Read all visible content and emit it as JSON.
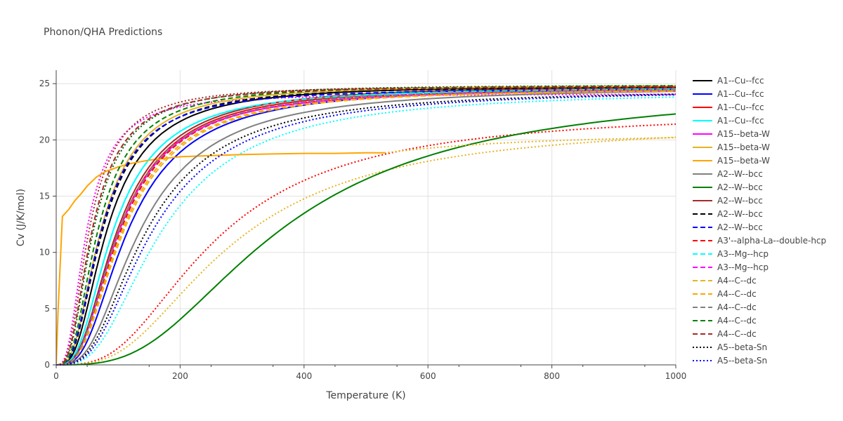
{
  "chart_data": {
    "type": "line",
    "title": "Phonon/QHA Predictions",
    "xlabel": "Temperature (K)",
    "ylabel": "Cv (J/K/mol)",
    "xlim": [
      0,
      1000
    ],
    "ylim": [
      0,
      26.2
    ],
    "x_ticks": [
      0,
      200,
      400,
      600,
      800,
      1000
    ],
    "y_ticks": [
      0,
      5,
      10,
      15,
      20,
      25
    ],
    "grid": true,
    "legend_position": "right",
    "series": [
      {
        "name": "A1--Cu--fcc",
        "color": "#000000",
        "dash": "solid",
        "theta": 340,
        "cinf": 24.9,
        "xmax": 1000
      },
      {
        "name": "A1--Cu--fcc",
        "color": "#0000ff",
        "dash": "solid",
        "theta": 480,
        "cinf": 24.8,
        "xmax": 1000
      },
      {
        "name": "A1--Cu--fcc",
        "color": "#ff0000",
        "dash": "solid",
        "theta": 420,
        "cinf": 24.8,
        "xmax": 1000
      },
      {
        "name": "A1--Cu--fcc",
        "color": "#00ffff",
        "dash": "solid",
        "theta": 380,
        "cinf": 24.7,
        "xmax": 1000
      },
      {
        "name": "A15--beta-W",
        "color": "#ff00ff",
        "dash": "solid",
        "theta": 420,
        "cinf": 24.6,
        "xmax": 1000
      },
      {
        "name": "A15--beta-W",
        "color": "#e6b422",
        "dash": "solid",
        "theta": 300,
        "cinf": 24.9,
        "xmax": 1000
      },
      {
        "name": "A15--beta-W",
        "color": "#ffa500",
        "dash": "solid",
        "theta": 0,
        "cinf": 0,
        "xmax": 530
      },
      {
        "name": "A2--W--bcc",
        "color": "#808080",
        "dash": "solid",
        "theta": 560,
        "cinf": 24.7,
        "xmax": 1000
      },
      {
        "name": "A2--W--bcc",
        "color": "#008000",
        "dash": "solid",
        "theta": 1500,
        "cinf": 24.9,
        "xmax": 1000
      },
      {
        "name": "A2--W--bcc",
        "color": "#a52a2a",
        "dash": "solid",
        "theta": 410,
        "cinf": 24.9,
        "xmax": 1000
      },
      {
        "name": "A2--W--bcc",
        "color": "#000000",
        "dash": "dash",
        "theta": 310,
        "cinf": 24.8,
        "xmax": 1000
      },
      {
        "name": "A2--W--bcc",
        "color": "#0000ff",
        "dash": "dash",
        "theta": 300,
        "cinf": 24.6,
        "xmax": 1000
      },
      {
        "name": "A3'--alpha-La--double-hcp",
        "color": "#ff0000",
        "dash": "dash",
        "theta": 430,
        "cinf": 24.7,
        "xmax": 1000
      },
      {
        "name": "A3--Mg--hcp",
        "color": "#00ffff",
        "dash": "dash",
        "theta": 380,
        "cinf": 24.7,
        "xmax": 1000
      },
      {
        "name": "A3--Mg--hcp",
        "color": "#ff00ff",
        "dash": "dash",
        "theta": 420,
        "cinf": 24.6,
        "xmax": 1000
      },
      {
        "name": "A4--C--dc",
        "color": "#e6b422",
        "dash": "dash",
        "theta": 450,
        "cinf": 24.6,
        "xmax": 1000
      },
      {
        "name": "A4--C--dc",
        "color": "#ffa500",
        "dash": "dash",
        "theta": 440,
        "cinf": 24.6,
        "xmax": 1000
      },
      {
        "name": "A4--C--dc",
        "color": "#808080",
        "dash": "dash",
        "theta": 420,
        "cinf": 24.7,
        "xmax": 1000
      },
      {
        "name": "A4--C--dc",
        "color": "#008000",
        "dash": "dash",
        "theta": 280,
        "cinf": 24.9,
        "xmax": 1000
      },
      {
        "name": "A4--C--dc",
        "color": "#a52a2a",
        "dash": "dash",
        "theta": 240,
        "cinf": 24.8,
        "xmax": 1000
      },
      {
        "name": "A5--beta-Sn",
        "color": "#000000",
        "dash": "dot",
        "theta": 600,
        "cinf": 24.5,
        "xmax": 1000
      },
      {
        "name": "A5--beta-Sn",
        "color": "#0000ff",
        "dash": "dot",
        "theta": 640,
        "cinf": 24.5,
        "xmax": 1000
      }
    ],
    "extra_series": [
      {
        "color": "#ff00ff",
        "dash": "dot",
        "theta": 200,
        "cinf": 24.1
      },
      {
        "color": "#00ffff",
        "dash": "dot",
        "theta": 700,
        "cinf": 24.4
      },
      {
        "color": "#ff0000",
        "dash": "dot",
        "theta": 1050,
        "cinf": 22.6
      },
      {
        "color": "#e6b422",
        "dash": "dot",
        "theta": 1150,
        "cinf": 21.6
      },
      {
        "color": "#006400",
        "dash": "dot",
        "theta": 250,
        "cinf": 24.9
      },
      {
        "color": "#a52a2a",
        "dash": "dot",
        "theta": 220,
        "cinf": 24.8
      }
    ],
    "orange_solid_points": [
      [
        0,
        0
      ],
      [
        3,
        4.7
      ],
      [
        10,
        13.2
      ],
      [
        20,
        13.8
      ],
      [
        30,
        14.6
      ],
      [
        40,
        15.2
      ],
      [
        50,
        15.9
      ],
      [
        65,
        16.7
      ],
      [
        80,
        17.2
      ],
      [
        100,
        17.6
      ],
      [
        120,
        17.9
      ],
      [
        150,
        18.2
      ],
      [
        200,
        18.5
      ],
      [
        250,
        18.6
      ],
      [
        300,
        18.7
      ],
      [
        350,
        18.75
      ],
      [
        400,
        18.8
      ],
      [
        450,
        18.8
      ],
      [
        500,
        18.85
      ],
      [
        530,
        18.85
      ]
    ]
  }
}
